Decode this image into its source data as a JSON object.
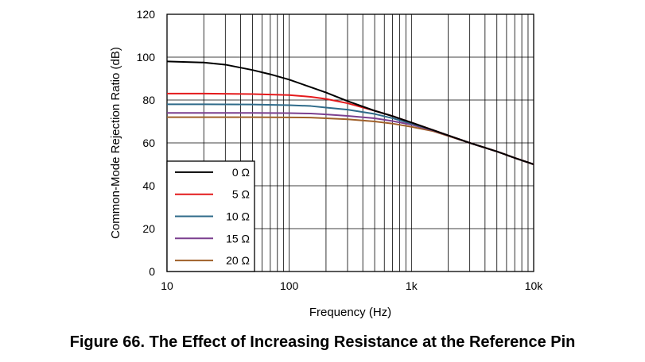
{
  "caption": "Figure 66.  The Effect of Increasing Resistance at the Reference Pin",
  "chart_data": {
    "type": "line",
    "xscale": "log",
    "xlim": [
      10,
      10000
    ],
    "ylim": [
      0,
      120
    ],
    "xlabel": "Frequency (Hz)",
    "ylabel": "Common-Mode Rejection Ratio (dB)",
    "xticks": [
      10,
      100,
      1000,
      10000
    ],
    "xtick_labels": [
      "10",
      "100",
      "1k",
      "10k"
    ],
    "yticks": [
      0,
      20,
      40,
      60,
      80,
      100,
      120
    ],
    "ytick_labels": [
      "0",
      "20",
      "40",
      "60",
      "80",
      "100",
      "120"
    ],
    "grid": true,
    "legend_position": "bottom-left",
    "series": [
      {
        "name": "0 Ω",
        "color": "#000000",
        "x": [
          10,
          20,
          30,
          50,
          70,
          100,
          150,
          200,
          300,
          500,
          700,
          1000,
          1500,
          2000,
          3000,
          5000,
          7000,
          10000
        ],
        "y": [
          98,
          97.5,
          96.5,
          94,
          92,
          89.5,
          86,
          83.5,
          79.5,
          75,
          72.5,
          69.5,
          66,
          63.5,
          60,
          56,
          53,
          50
        ]
      },
      {
        "name": "5 Ω",
        "color": "#e41a1c",
        "x": [
          10,
          20,
          50,
          100,
          150,
          200,
          300,
          500,
          700,
          1000,
          1500,
          2000,
          3000,
          5000,
          7000,
          10000
        ],
        "y": [
          83,
          83,
          82.8,
          82.3,
          81.5,
          80.5,
          78.5,
          75,
          72.5,
          69.5,
          66,
          63.5,
          60,
          56,
          53,
          50
        ]
      },
      {
        "name": "10 Ω",
        "color": "#2f6b8a",
        "x": [
          10,
          20,
          50,
          100,
          150,
          200,
          300,
          500,
          700,
          1000,
          1500,
          2000,
          3000,
          5000,
          7000,
          10000
        ],
        "y": [
          78,
          78,
          77.9,
          77.6,
          77.2,
          76.5,
          75.5,
          73.5,
          71.5,
          69,
          66,
          63.5,
          60,
          56,
          53,
          50
        ]
      },
      {
        "name": "15 Ω",
        "color": "#7b3f8f",
        "x": [
          10,
          20,
          50,
          100,
          150,
          200,
          300,
          500,
          700,
          1000,
          1500,
          2000,
          3000,
          5000,
          7000,
          10000
        ],
        "y": [
          74,
          74,
          74,
          73.9,
          73.7,
          73.3,
          72.6,
          71.5,
          70.2,
          68.5,
          65.8,
          63.4,
          60,
          56,
          53,
          50
        ]
      },
      {
        "name": "20 Ω",
        "color": "#a0602a",
        "x": [
          10,
          20,
          50,
          100,
          150,
          200,
          300,
          500,
          700,
          1000,
          1500,
          2000,
          3000,
          5000,
          7000,
          10000
        ],
        "y": [
          72,
          72,
          72,
          71.9,
          71.8,
          71.5,
          71,
          70,
          69,
          67.5,
          65.5,
          63.2,
          60,
          56,
          53,
          50
        ]
      }
    ]
  }
}
